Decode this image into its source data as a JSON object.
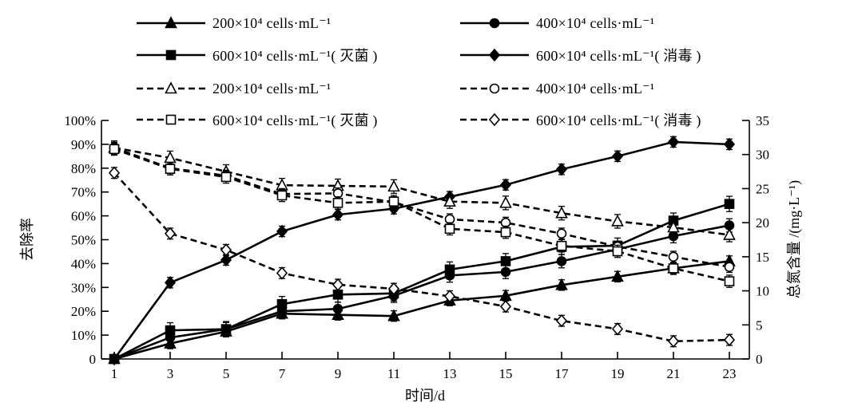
{
  "figure": {
    "background": "#ffffff",
    "ink": "#000000"
  },
  "chart_data": {
    "type": "line",
    "x": [
      1,
      3,
      5,
      7,
      9,
      11,
      13,
      15,
      17,
      19,
      21,
      23
    ],
    "xlabel": "时间/d",
    "x_tick_labels": [
      "1",
      "3",
      "5",
      "7",
      "9",
      "11",
      "13",
      "15",
      "17",
      "19",
      "21",
      "23"
    ],
    "axes": {
      "left": {
        "label": "去除率",
        "range": [
          0,
          100
        ],
        "tick_values": [
          0,
          10,
          20,
          30,
          40,
          50,
          60,
          70,
          80,
          90,
          100
        ],
        "tick_labels": [
          "0",
          "10%",
          "20%",
          "30%",
          "40%",
          "50%",
          "60%",
          "70%",
          "80%",
          "90%",
          "100%"
        ]
      },
      "right": {
        "label": "总氮含量 /(mg·L⁻¹)",
        "range": [
          0,
          35
        ],
        "tick_values": [
          0,
          5,
          10,
          15,
          20,
          25,
          30,
          35
        ],
        "tick_labels": [
          "0",
          "5",
          "10",
          "15",
          "20",
          "25",
          "30",
          "35"
        ]
      }
    },
    "legend": {
      "position": "top",
      "columns": 2
    },
    "series": [
      {
        "id": "removal-200",
        "label": "200×10⁴ cells·mL⁻¹",
        "axis": "left",
        "marker": "triangle",
        "open": false,
        "dashed": false,
        "err": 2.2,
        "values": [
          0,
          6.5,
          11.5,
          19,
          18.5,
          18,
          24.5,
          26.5,
          31,
          34.5,
          38,
          41
        ]
      },
      {
        "id": "removal-400",
        "label": "400×10⁴ cells·mL⁻¹",
        "axis": "left",
        "marker": "circle",
        "open": false,
        "dashed": false,
        "err": 2.8,
        "values": [
          0,
          9,
          12.5,
          20,
          21,
          26.5,
          35,
          36.5,
          41,
          46,
          51.5,
          56
        ]
      },
      {
        "id": "removal-600-miejun",
        "label": "600×10⁴ cells·mL⁻¹( 灭菌 )",
        "axis": "left",
        "marker": "square",
        "open": false,
        "dashed": false,
        "err": 3.2,
        "values": [
          0,
          12,
          12.5,
          23,
          27,
          27.5,
          37.5,
          41,
          47,
          47.5,
          58,
          65
        ]
      },
      {
        "id": "removal-600-xiaodu",
        "label": "600×10⁴ cells·mL⁻¹( 消毒 )",
        "axis": "left",
        "marker": "diamond",
        "open": false,
        "dashed": false,
        "err": 2.2,
        "values": [
          0,
          32,
          41.5,
          53.5,
          60.5,
          63,
          68,
          73,
          79.5,
          85,
          91,
          90
        ]
      },
      {
        "id": "tn-200",
        "label": "200×10⁴ cells·mL⁻¹",
        "axis": "right",
        "marker": "triangle",
        "open": true,
        "dashed": true,
        "err": 1.0,
        "values": [
          31.0,
          29.5,
          27.5,
          25.5,
          25.4,
          25.3,
          23.1,
          22.9,
          21.4,
          20.2,
          19.3,
          18.2
        ]
      },
      {
        "id": "tn-400",
        "label": "400×10⁴ cells·mL⁻¹",
        "axis": "right",
        "marker": "circle",
        "open": true,
        "dashed": true,
        "err": 0.8,
        "values": [
          31.0,
          28.0,
          26.9,
          24.2,
          24.3,
          23.0,
          20.5,
          20.0,
          18.4,
          16.5,
          15.0,
          13.5
        ]
      },
      {
        "id": "tn-600-miejun",
        "label": "600×10⁴ cells·mL⁻¹( 灭菌 )",
        "axis": "right",
        "marker": "square",
        "open": true,
        "dashed": true,
        "err": 0.9,
        "values": [
          30.8,
          27.9,
          26.7,
          24.0,
          22.9,
          23.1,
          19.1,
          18.6,
          16.6,
          15.8,
          13.3,
          11.4
        ]
      },
      {
        "id": "tn-600-xiaodu",
        "label": "600×10⁴ cells·mL⁻¹( 消毒 )",
        "axis": "right",
        "marker": "diamond",
        "open": true,
        "dashed": true,
        "err": 0.8,
        "values": [
          27.3,
          18.4,
          16.0,
          12.6,
          10.9,
          10.3,
          9.2,
          7.7,
          5.6,
          4.4,
          2.6,
          2.8
        ]
      }
    ]
  }
}
